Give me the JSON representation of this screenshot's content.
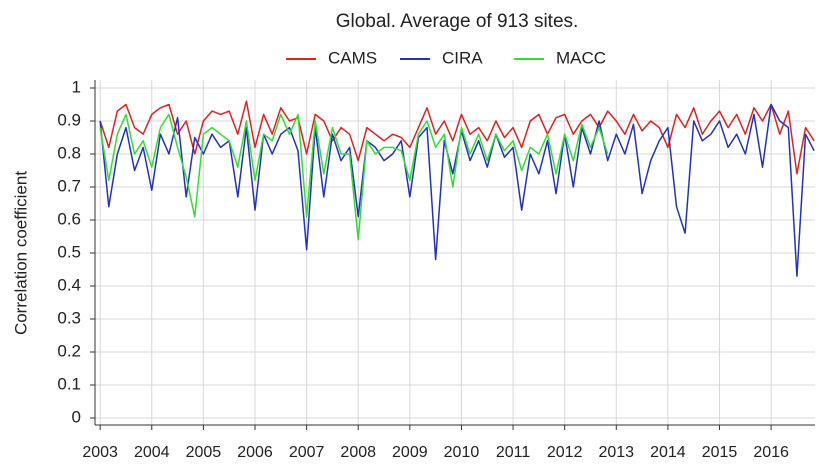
{
  "chart_data": {
    "type": "line",
    "title": "Global. Average of 913 sites.",
    "y_label": "Correlation coefficient",
    "x": [
      2003,
      2003.167,
      2003.333,
      2003.5,
      2003.667,
      2003.833,
      2004,
      2004.167,
      2004.333,
      2004.5,
      2004.667,
      2004.833,
      2005,
      2005.167,
      2005.333,
      2005.5,
      2005.667,
      2005.833,
      2006,
      2006.167,
      2006.333,
      2006.5,
      2006.667,
      2006.833,
      2007,
      2007.167,
      2007.333,
      2007.5,
      2007.667,
      2007.833,
      2008,
      2008.167,
      2008.333,
      2008.5,
      2008.667,
      2008.833,
      2009,
      2009.167,
      2009.333,
      2009.5,
      2009.667,
      2009.833,
      2010,
      2010.167,
      2010.333,
      2010.5,
      2010.667,
      2010.833,
      2011,
      2011.167,
      2011.333,
      2011.5,
      2011.667,
      2011.833,
      2012,
      2012.167,
      2012.333,
      2012.5,
      2012.667,
      2012.833,
      2013,
      2013.167,
      2013.333,
      2013.5,
      2013.667,
      2013.833,
      2014,
      2014.167,
      2014.333,
      2014.5,
      2014.667,
      2014.833,
      2015,
      2015.167,
      2015.333,
      2015.5,
      2015.667,
      2015.833,
      2016,
      2016.167,
      2016.333,
      2016.5,
      2016.667,
      2016.833
    ],
    "series": [
      {
        "name": "CAMS",
        "color": "#dd2222",
        "values": [
          0.9,
          0.82,
          0.93,
          0.95,
          0.88,
          0.86,
          0.92,
          0.94,
          0.95,
          0.86,
          0.9,
          0.8,
          0.9,
          0.93,
          0.92,
          0.93,
          0.86,
          0.96,
          0.82,
          0.92,
          0.86,
          0.94,
          0.9,
          0.91,
          0.8,
          0.92,
          0.9,
          0.84,
          0.88,
          0.86,
          0.78,
          0.88,
          0.86,
          0.84,
          0.86,
          0.85,
          0.82,
          0.88,
          0.94,
          0.86,
          0.9,
          0.84,
          0.92,
          0.86,
          0.88,
          0.84,
          0.9,
          0.85,
          0.88,
          0.82,
          0.9,
          0.92,
          0.86,
          0.91,
          0.92,
          0.86,
          0.9,
          0.92,
          0.88,
          0.93,
          0.9,
          0.86,
          0.92,
          0.87,
          0.9,
          0.88,
          0.82,
          0.92,
          0.88,
          0.94,
          0.86,
          0.9,
          0.93,
          0.88,
          0.92,
          0.86,
          0.94,
          0.9,
          0.95,
          0.86,
          0.93,
          0.74,
          0.88,
          0.84
        ]
      },
      {
        "name": "CIRA",
        "color": "#2233bb",
        "values": [
          0.9,
          0.64,
          0.8,
          0.88,
          0.75,
          0.82,
          0.69,
          0.86,
          0.8,
          0.91,
          0.67,
          0.85,
          0.8,
          0.86,
          0.82,
          0.84,
          0.67,
          0.88,
          0.63,
          0.86,
          0.8,
          0.86,
          0.88,
          0.81,
          0.51,
          0.88,
          0.67,
          0.86,
          0.78,
          0.82,
          0.61,
          0.84,
          0.82,
          0.78,
          0.8,
          0.84,
          0.67,
          0.85,
          0.88,
          0.48,
          0.84,
          0.74,
          0.87,
          0.78,
          0.84,
          0.76,
          0.86,
          0.79,
          0.82,
          0.63,
          0.8,
          0.74,
          0.84,
          0.68,
          0.86,
          0.7,
          0.88,
          0.8,
          0.9,
          0.78,
          0.86,
          0.8,
          0.89,
          0.68,
          0.78,
          0.84,
          0.88,
          0.64,
          0.56,
          0.9,
          0.84,
          0.86,
          0.9,
          0.82,
          0.86,
          0.8,
          0.92,
          0.76,
          0.95,
          0.9,
          0.88,
          0.43,
          0.86,
          0.81
        ]
      },
      {
        "name": "MACC",
        "color": "#33dd33",
        "values": [
          0.88,
          0.72,
          0.86,
          0.92,
          0.8,
          0.84,
          0.76,
          0.88,
          0.92,
          0.82,
          0.73,
          0.61,
          0.86,
          0.88,
          0.86,
          0.84,
          0.76,
          0.9,
          0.72,
          0.86,
          0.84,
          0.92,
          0.86,
          0.92,
          0.61,
          0.9,
          0.74,
          0.88,
          0.8,
          0.8,
          0.54,
          0.84,
          0.8,
          0.82,
          0.82,
          0.81,
          0.72,
          0.86,
          0.9,
          0.82,
          0.86,
          0.7,
          0.88,
          0.8,
          0.86,
          0.78,
          0.86,
          0.81,
          0.84,
          0.75,
          0.82,
          0.8,
          0.86,
          0.74,
          0.86,
          0.78,
          0.89,
          0.82,
          0.88,
          0.8,
          null,
          null,
          null,
          null,
          null,
          null,
          null,
          null,
          null,
          null,
          null,
          null,
          null,
          null,
          null,
          null,
          null,
          null,
          null,
          null,
          null,
          null,
          null,
          null
        ]
      }
    ],
    "xlim": [
      2002.9,
      2016.85
    ],
    "xticks": [
      2003,
      2004,
      2005,
      2006,
      2007,
      2008,
      2009,
      2010,
      2011,
      2012,
      2013,
      2014,
      2015,
      2016
    ],
    "ylim": [
      0,
      1
    ],
    "yticks": [
      0,
      0.1,
      0.2,
      0.3,
      0.4,
      0.5,
      0.6,
      0.7,
      0.8,
      0.9,
      1
    ],
    "grid": true,
    "legend": "top"
  }
}
